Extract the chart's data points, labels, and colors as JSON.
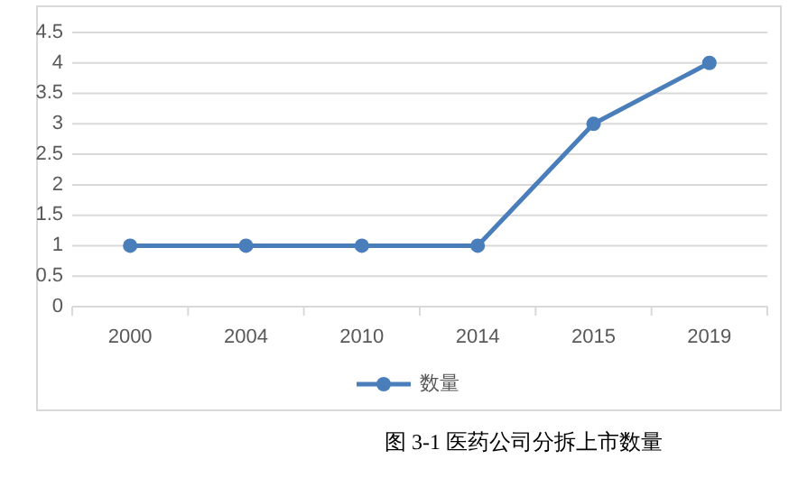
{
  "chart_data": {
    "type": "line",
    "title": "图 3-1  医药公司分拆上市数量",
    "categories": [
      "2000",
      "2004",
      "2010",
      "2014",
      "2015",
      "2019"
    ],
    "series": [
      {
        "name": "数量",
        "color": "#4a7ebb",
        "values": [
          1,
          1,
          1,
          1,
          3,
          4
        ]
      }
    ],
    "ylim": [
      0,
      4.5
    ],
    "yticks": [
      0,
      0.5,
      1,
      1.5,
      2,
      2.5,
      3,
      3.5,
      4,
      4.5
    ],
    "grid": "y",
    "legend": "bottom",
    "marker": "circle",
    "line_style": "solid"
  }
}
